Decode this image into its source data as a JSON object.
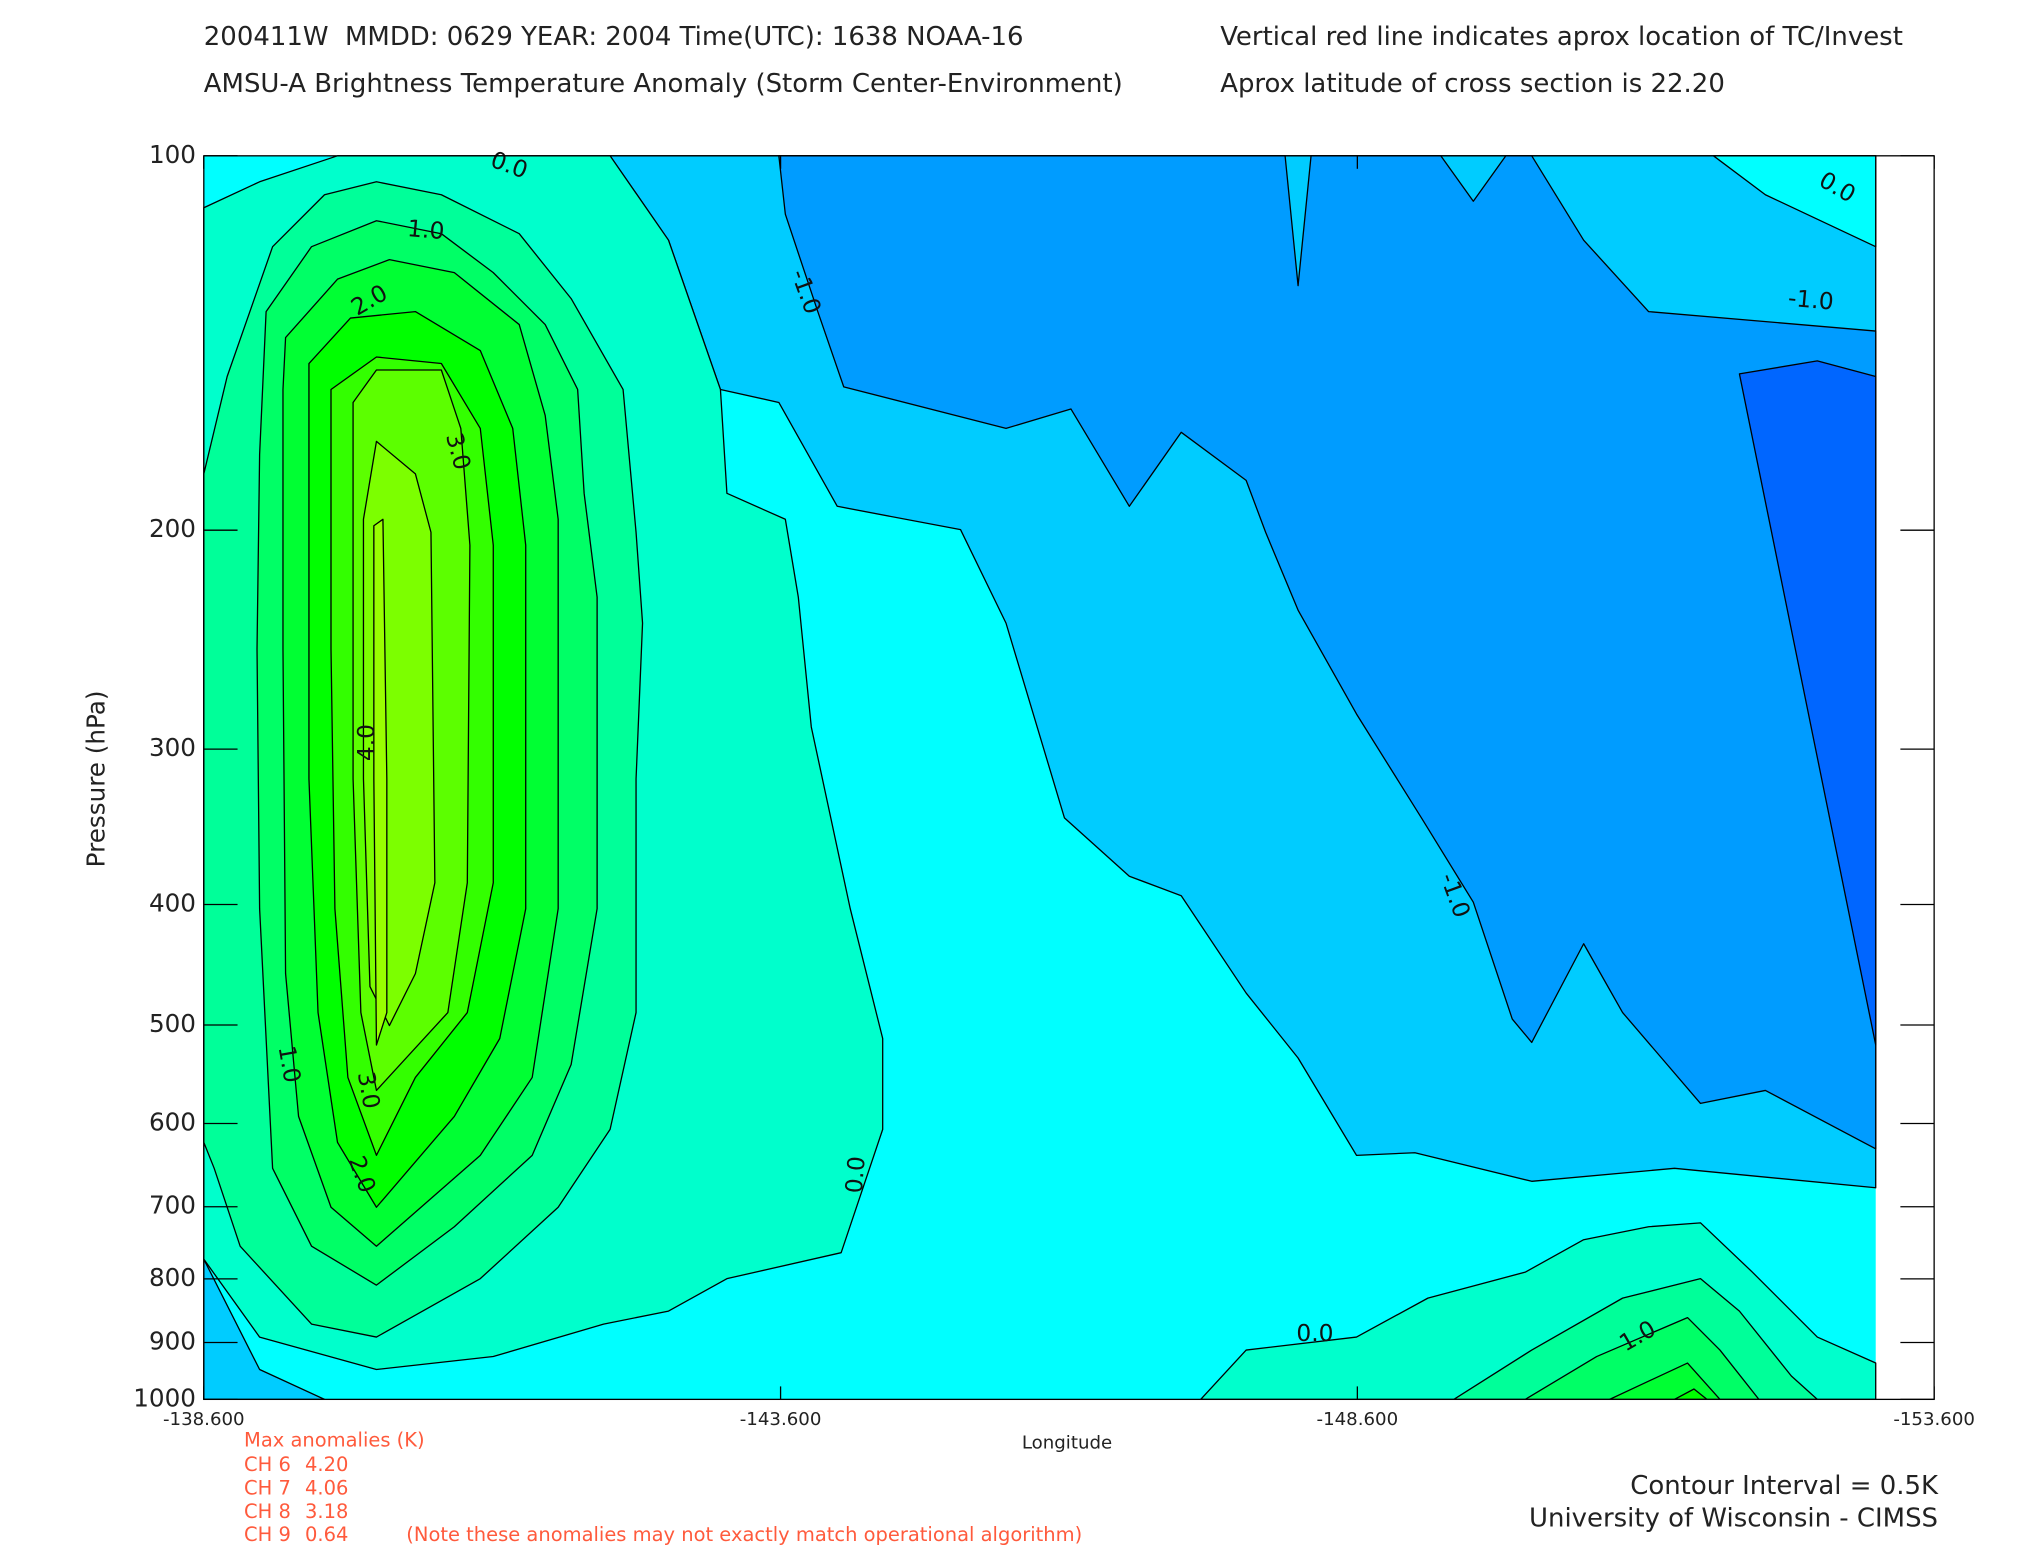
{
  "chart_data": {
    "type": "contour",
    "title": "200411W  MMDD: 0629 YEAR: 2004 Time(UTC): 1638 NOAA-16",
    "subtitle": "AMSU-A Brightness Temperature Anomaly (Storm Center-Environment)",
    "annotations": [
      "Vertical red line indicates aprox location of TC/Invest",
      "Aprox latitude of cross section is 22.20"
    ],
    "xlabel": "Longitude",
    "ylabel": "Pressure (hPa)",
    "xlim": [
      -138.6,
      -153.6
    ],
    "xticks": [
      {
        "value": -138.6,
        "label": "-138.600"
      },
      {
        "value": -143.6,
        "label": "-143.600"
      },
      {
        "value": -148.6,
        "label": "-148.600"
      },
      {
        "value": -153.6,
        "label": "-153.600"
      }
    ],
    "ylim": [
      1000,
      100
    ],
    "yticks": [
      100,
      200,
      300,
      400,
      500,
      600,
      700,
      800,
      900,
      1000
    ],
    "log_y": true,
    "levels": [
      -1.5,
      {
        "value": -1,
        "label": "-1.0"
      },
      -0.5,
      {
        "value": 0,
        "label": "0.0"
      },
      0.5,
      {
        "value": 1,
        "label": "1.0"
      },
      1.5,
      {
        "value": 2,
        "label": "2.0"
      },
      2.5,
      {
        "value": 3,
        "label": "3.0"
      },
      3.5,
      {
        "value": 4,
        "label": "4.0"
      }
    ],
    "colors": [
      "#0066ff",
      "#009cff",
      "#00ccff",
      "#00ffff",
      "#00ffcc",
      "#00ff99",
      "#00ff66",
      "#00ff33",
      "#00ff00",
      "#33ff00",
      "#5cff00",
      "#7cff00",
      "#99ff00"
    ],
    "max_anomalies": {
      "title": "Max anomalies (K)",
      "rows": [
        {
          "channel": "CH 6",
          "value": {
            "value": 4.2,
            "label": "4.20"
          }
        },
        {
          "channel": "CH 7",
          "value": {
            "value": 4.06,
            "label": "4.06"
          }
        },
        {
          "channel": "CH 8",
          "value": {
            "value": 3.18,
            "label": "3.18"
          }
        },
        {
          "channel": "CH 9",
          "value": {
            "value": 0.64,
            "label": "0.64"
          }
        }
      ],
      "note": "(Note these anomalies may not exactly match operational algorithm)"
    },
    "footer": [
      "Contour Interval = 0.5K",
      "University of Wisconsin - CIMSS"
    ]
  }
}
